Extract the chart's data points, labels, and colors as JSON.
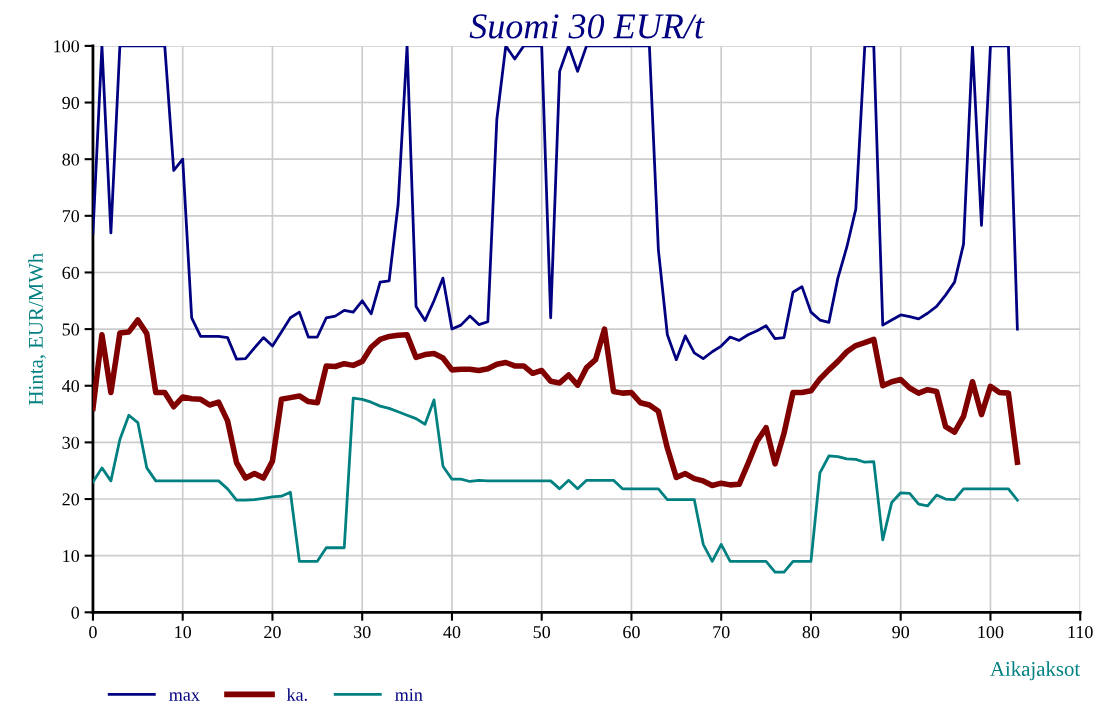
{
  "chart_data": {
    "type": "line",
    "title": "Suomi 30 EUR/t",
    "xlabel": "Aikajaksot",
    "ylabel": "Hinta, EUR/MWh",
    "x": [
      0,
      1,
      2,
      3,
      4,
      5,
      6,
      7,
      8,
      9,
      10,
      11,
      12,
      13,
      14,
      15,
      16,
      17,
      18,
      19,
      20,
      21,
      22,
      23,
      24,
      25,
      26,
      27,
      28,
      29,
      30,
      31,
      32,
      33,
      34,
      35,
      36,
      37,
      38,
      39,
      40,
      41,
      42,
      43,
      44,
      45,
      46,
      47,
      48,
      49,
      50,
      51,
      52,
      53,
      54,
      55,
      56,
      57,
      58,
      59,
      60,
      61,
      62,
      63,
      64,
      65,
      66,
      67,
      68,
      69,
      70,
      71,
      72,
      73,
      74,
      75,
      76,
      77,
      78,
      79,
      80,
      81,
      82,
      83,
      84,
      85,
      86,
      87,
      88,
      89,
      90,
      91,
      92,
      93,
      94,
      95,
      96,
      97,
      98,
      99,
      100,
      101,
      102,
      103
    ],
    "series": [
      {
        "name": "max",
        "color": "#000080",
        "values": [
          67,
          100,
          67,
          100,
          100,
          100,
          100,
          100,
          100,
          78,
          80,
          52,
          48.7,
          48.7,
          48.7,
          48.5,
          44.7,
          44.8,
          46.7,
          48.5,
          47,
          49.5,
          52,
          53,
          48.6,
          48.6,
          52,
          52.3,
          53.3,
          53,
          55,
          52.7,
          58.3,
          58.5,
          72,
          100,
          54,
          51.5,
          55,
          59,
          50,
          50.7,
          52.3,
          50.8,
          51.3,
          87,
          100,
          97.7,
          100,
          100,
          100,
          52,
          95.5,
          100,
          95.5,
          100,
          100,
          100,
          100,
          100,
          100,
          100,
          100,
          64,
          49,
          44.6,
          48.8,
          45.8,
          44.8,
          46,
          47,
          48.6,
          48,
          49,
          49.7,
          50.6,
          48.3,
          48.5,
          56.5,
          57.5,
          53,
          51.6,
          51.2,
          59,
          64.5,
          71.2,
          100,
          100,
          50.7,
          51.6,
          52.5,
          52.2,
          51.8,
          52.8,
          54,
          56,
          58.3,
          65,
          100,
          68.3,
          100,
          100,
          100,
          50
        ]
      },
      {
        "name": "ka.",
        "color": "#800000",
        "values": [
          36,
          49,
          38.8,
          49.3,
          49.5,
          51.6,
          49.2,
          38.8,
          38.8,
          36.3,
          38,
          37.7,
          37.6,
          36.6,
          37.1,
          33.8,
          26.4,
          23.7,
          24.5,
          23.7,
          26.7,
          37.6,
          37.9,
          38.2,
          37.2,
          37,
          43.5,
          43.4,
          43.9,
          43.6,
          44.3,
          46.8,
          48.2,
          48.7,
          48.9,
          49,
          45,
          45.5,
          45.7,
          44.9,
          42.8,
          42.9,
          42.9,
          42.7,
          43,
          43.8,
          44.1,
          43.5,
          43.5,
          42.2,
          42.7,
          40.8,
          40.5,
          41.9,
          40.1,
          43.2,
          44.6,
          50,
          39,
          38.7,
          38.8,
          37,
          36.6,
          35.5,
          29,
          23.8,
          24.5,
          23.6,
          23.2,
          22.4,
          22.8,
          22.5,
          22.6,
          26.3,
          30.2,
          32.6,
          26.2,
          31.6,
          38.8,
          38.8,
          39.1,
          41.2,
          42.8,
          44.3,
          46,
          47.1,
          47.6,
          48.2,
          40,
          40.7,
          41.1,
          39.6,
          38.7,
          39.3,
          39,
          32.8,
          31.8,
          34.6,
          40.7,
          34.9,
          39.9,
          38.8,
          38.7,
          26.5
        ]
      },
      {
        "name": "min",
        "color": "#008080",
        "values": [
          23,
          25.5,
          23.2,
          30.5,
          34.8,
          33.5,
          25.5,
          23.2,
          23.2,
          23.2,
          23.2,
          23.2,
          23.2,
          23.2,
          23.2,
          21.8,
          19.8,
          19.8,
          19.9,
          20.1,
          20.4,
          20.5,
          21.2,
          9,
          9,
          9,
          11.4,
          11.4,
          11.4,
          37.8,
          37.6,
          37.1,
          36.4,
          36,
          35.4,
          34.8,
          34.2,
          33.2,
          37.5,
          25.8,
          23.5,
          23.5,
          23.1,
          23.3,
          23.2,
          23.2,
          23.2,
          23.2,
          23.2,
          23.2,
          23.2,
          23.2,
          21.8,
          23.3,
          21.8,
          23.3,
          23.3,
          23.3,
          23.3,
          21.8,
          21.8,
          21.8,
          21.8,
          21.8,
          19.9,
          19.9,
          19.9,
          19.9,
          12,
          9,
          12,
          9,
          9,
          9,
          9,
          9,
          7.1,
          7.1,
          9,
          9,
          9,
          24.6,
          27.6,
          27.5,
          27.1,
          27,
          26.5,
          26.6,
          12.8,
          19.4,
          21.1,
          21,
          19.1,
          18.8,
          20.7,
          20,
          19.9,
          21.8,
          21.8,
          21.8,
          21.8,
          21.8,
          21.8,
          19.8
        ]
      }
    ],
    "xlim": [
      0,
      110
    ],
    "xticks": [
      0,
      10,
      20,
      30,
      40,
      50,
      60,
      70,
      80,
      90,
      100,
      110
    ],
    "ylim": [
      0,
      100
    ],
    "yticks": [
      0,
      10,
      20,
      30,
      40,
      50,
      60,
      70,
      80,
      90,
      100
    ],
    "grid": true,
    "legend": "bottom",
    "marker": "none",
    "line_style": "solid"
  }
}
